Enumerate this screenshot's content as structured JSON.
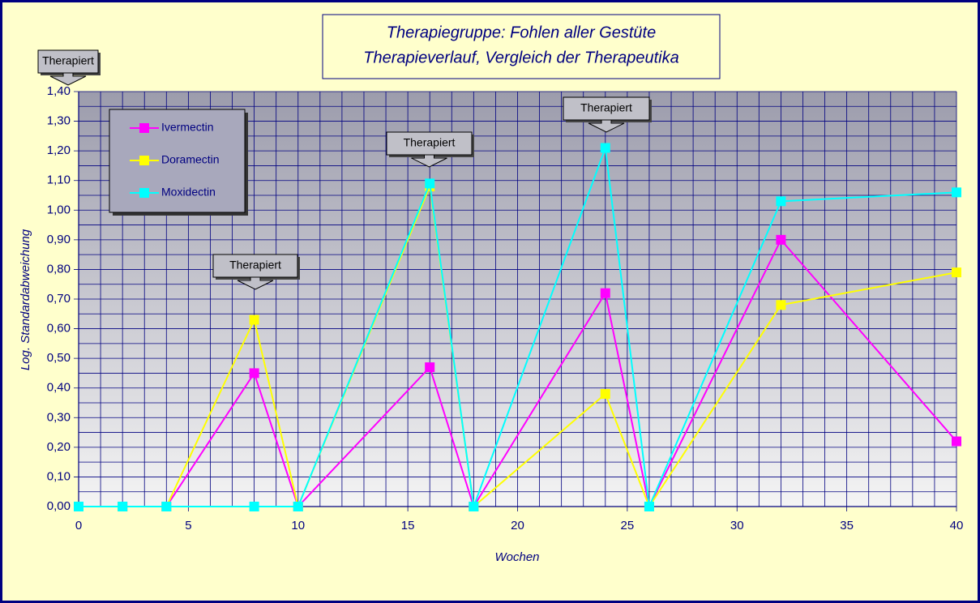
{
  "chart_data": {
    "type": "line",
    "title": [
      "Therapiegruppe:  Fohlen aller Gestüte",
      "Therapieverlauf, Vergleich der Therapeutika"
    ],
    "x_label": "Wochen",
    "y_label": "Log. Standardabweichung",
    "x": [
      0,
      2,
      4,
      8,
      10,
      16,
      18,
      24,
      26,
      32,
      40
    ],
    "series": [
      {
        "name": "Ivermectin",
        "color": "#ff00ff",
        "values": [
          0,
          0,
          0,
          0.45,
          0,
          0.47,
          0,
          0.72,
          0,
          0.9,
          0.22
        ]
      },
      {
        "name": "Doramectin",
        "color": "#ffff00",
        "values": [
          0,
          0,
          0,
          0.63,
          0,
          1.08,
          0,
          0.38,
          0,
          0.68,
          0.79
        ]
      },
      {
        "name": "Moxidectin",
        "color": "#00ffff",
        "values": [
          0,
          0,
          0,
          0,
          0,
          1.09,
          0,
          1.21,
          0,
          1.03,
          1.06
        ]
      }
    ],
    "xlim": [
      0,
      40
    ],
    "xticks": [
      0,
      5,
      10,
      15,
      20,
      25,
      30,
      35,
      40
    ],
    "x_minor_ticks": [
      1,
      2,
      3,
      4,
      6,
      7,
      8,
      9,
      11,
      12,
      13,
      14,
      16,
      17,
      18,
      19,
      21,
      22,
      23,
      24,
      26,
      27,
      28,
      29,
      31,
      32,
      33,
      34,
      36,
      37,
      38,
      39
    ],
    "ylim": [
      0,
      1.4
    ],
    "yticks": [
      {
        "value": 0,
        "label": "0,00"
      },
      {
        "value": 0.1,
        "label": "0,10"
      },
      {
        "value": 0.2,
        "label": "0,20"
      },
      {
        "value": 0.3,
        "label": "0,30"
      },
      {
        "value": 0.4,
        "label": "0,40"
      },
      {
        "value": 0.5,
        "label": "0,50"
      },
      {
        "value": 0.6,
        "label": "0,60"
      },
      {
        "value": 0.7,
        "label": "0,70"
      },
      {
        "value": 0.8,
        "label": "0,80"
      },
      {
        "value": 0.9,
        "label": "0,90"
      },
      {
        "value": 1.0,
        "label": "1,00"
      },
      {
        "value": 1.1,
        "label": "1,10"
      },
      {
        "value": 1.2,
        "label": "1,20"
      },
      {
        "value": 1.3,
        "label": "1,30"
      },
      {
        "value": 1.4,
        "label": "1,40"
      }
    ],
    "y_minor_ticks": [
      0.05,
      0.15,
      0.25,
      0.35,
      0.45,
      0.55,
      0.65,
      0.75,
      0.85,
      0.95,
      1.05,
      1.15,
      1.25,
      1.35
    ],
    "grid": true,
    "legend": "top-left",
    "annotations": [
      "Therapiert",
      "Therapiert",
      "Therapiert",
      "Therapiert"
    ]
  }
}
